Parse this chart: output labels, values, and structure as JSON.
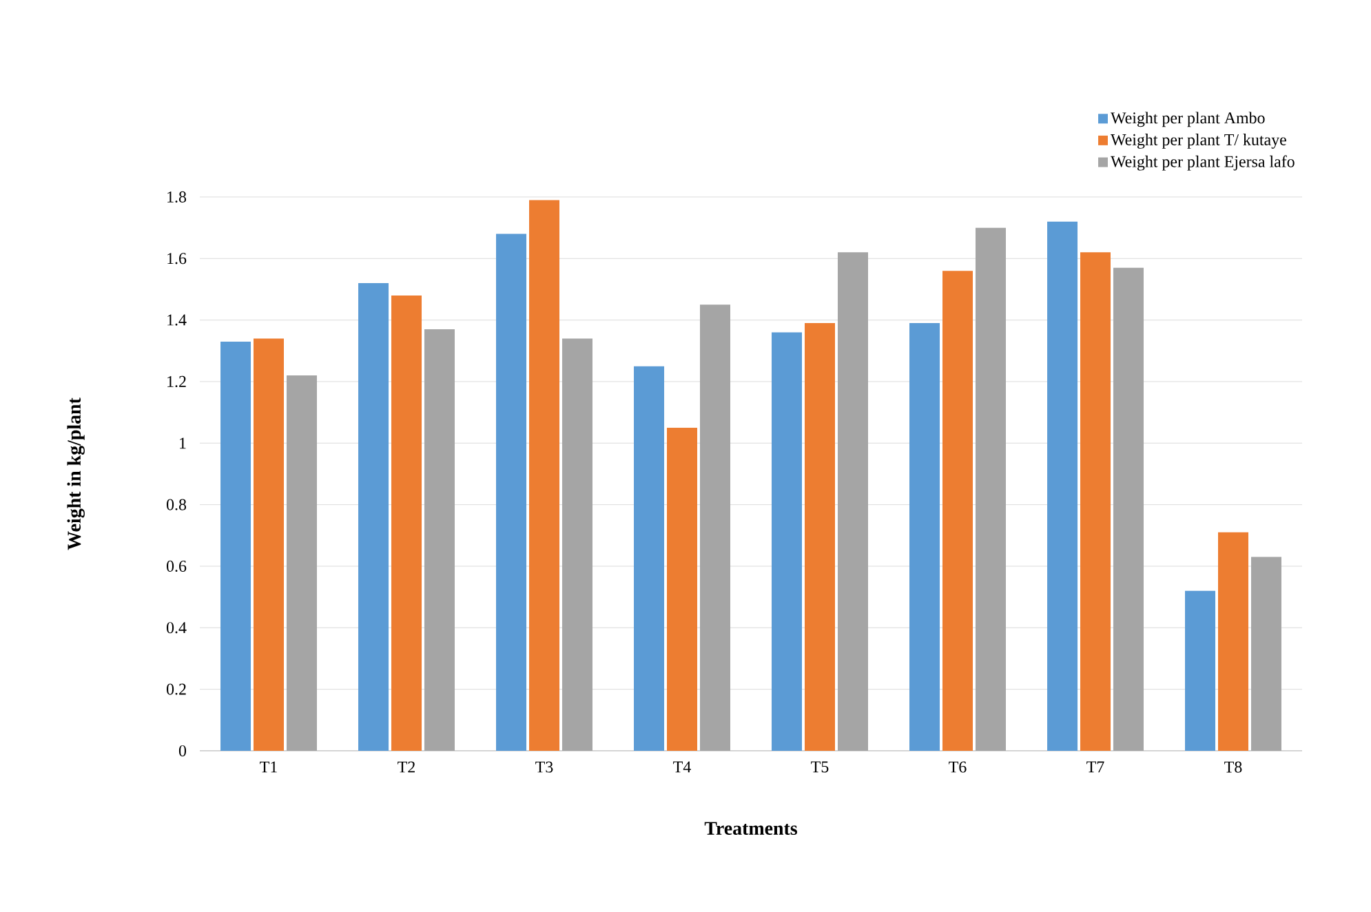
{
  "chart_data": {
    "type": "bar",
    "xlabel": "Treatments",
    "ylabel": "Weight in kg/plant",
    "categories": [
      "T1",
      "T2",
      "T3",
      "T4",
      "T5",
      "T6",
      "T7",
      "T8"
    ],
    "series": [
      {
        "name": "Weight per plant Ambo",
        "color": "#5b9bd5",
        "values": [
          1.33,
          1.52,
          1.68,
          1.25,
          1.36,
          1.39,
          1.72,
          0.52
        ]
      },
      {
        "name": "Weight per plant T/ kutaye",
        "color": "#ed7d31",
        "values": [
          1.34,
          1.48,
          1.79,
          1.05,
          1.39,
          1.56,
          1.62,
          0.71
        ]
      },
      {
        "name": "Weight per plant Ejersa lafo",
        "color": "#a5a5a5",
        "values": [
          1.22,
          1.37,
          1.34,
          1.45,
          1.62,
          1.7,
          1.57,
          0.63
        ]
      }
    ],
    "ylim": [
      0,
      1.8
    ],
    "yticks": [
      0,
      0.2,
      0.4,
      0.6,
      0.8,
      1,
      1.2,
      1.4,
      1.6,
      1.8
    ],
    "grid": "y",
    "legend": "top right"
  }
}
